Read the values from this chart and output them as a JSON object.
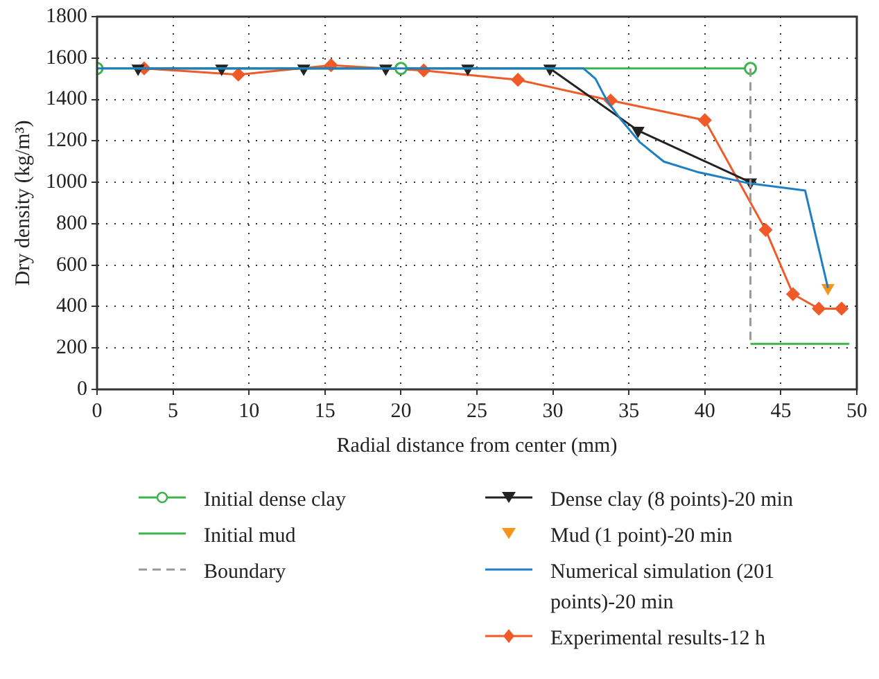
{
  "chart_data": {
    "type": "line",
    "xlabel": "Radial distance from center (mm)",
    "ylabel": "Dry density (kg/m³)",
    "xlim": [
      0,
      50
    ],
    "xticks": [
      0,
      5,
      10,
      15,
      20,
      25,
      30,
      35,
      40,
      45,
      50
    ],
    "ylim": [
      0,
      1800
    ],
    "yticks": [
      0,
      200,
      400,
      600,
      800,
      1000,
      1200,
      1400,
      1600,
      1800
    ],
    "grid": true,
    "legend": "bottom",
    "series": [
      {
        "name": "Initial dense clay",
        "color": "#3cb44b",
        "marker": "circle",
        "x": [
          0,
          20,
          43
        ],
        "values": [
          1550,
          1550,
          1550
        ]
      },
      {
        "name": "Initial mud",
        "color": "#3cb44b",
        "marker": "none",
        "x": [
          43,
          49.5
        ],
        "values": [
          220,
          220
        ]
      },
      {
        "name": "Boundary",
        "color": "#999999",
        "marker": "none",
        "line_style": "dashed",
        "x": [
          43,
          43
        ],
        "values": [
          1550,
          220
        ]
      },
      {
        "name": "Dense clay (8 points)-20 min",
        "color": "#222222",
        "marker": "triangle",
        "x": [
          2.7,
          8.2,
          13.6,
          19,
          24.4,
          29.8,
          35.6,
          43
        ],
        "values": [
          1550,
          1550,
          1550,
          1550,
          1550,
          1550,
          1250,
          1000
        ]
      },
      {
        "name": "Mud (1 point)-20 min",
        "type": "scatter",
        "color": "#f7941d",
        "marker": "triangle",
        "x": [
          48.1
        ],
        "values": [
          490
        ]
      },
      {
        "name": "Numerical simulation (201 points)-20 min",
        "color": "#1f7fc4",
        "marker": "none",
        "x": [
          0,
          32,
          32.8,
          33.3,
          33.6,
          34.4,
          35.7,
          37.3,
          39.5,
          42.9,
          46.6,
          48.1
        ],
        "values": [
          1550,
          1550,
          1500,
          1430,
          1390,
          1310,
          1195,
          1100,
          1050,
          995,
          960,
          490
        ]
      },
      {
        "name": "Experimental results-12 h",
        "color": "#f05a28",
        "marker": "diamond",
        "x": [
          3.1,
          9.3,
          15.4,
          21.5,
          27.7,
          33.8,
          40,
          44,
          45.8,
          47.5,
          49
        ],
        "values": [
          1550,
          1520,
          1565,
          1540,
          1495,
          1395,
          1300,
          770,
          460,
          390,
          390
        ]
      }
    ]
  }
}
